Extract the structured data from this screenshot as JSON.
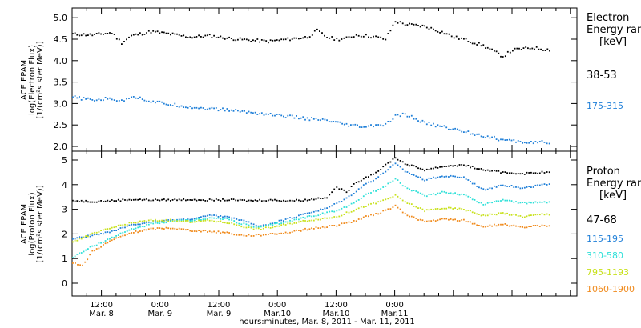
{
  "footer_xlabel": "hours:minutes, Mar.  8, 2011 - Mar. 11, 2011",
  "time_ticks": [
    {
      "top": "12:00",
      "bottom": "Mar. 8"
    },
    {
      "top": "0:00",
      "bottom": "Mar. 9"
    },
    {
      "top": "12:00",
      "bottom": "Mar. 9"
    },
    {
      "top": "0:00",
      "bottom": "Mar.10"
    },
    {
      "top": "12:00",
      "bottom": "Mar.10"
    },
    {
      "top": "0:00",
      "bottom": "Mar.11"
    }
  ],
  "chart_data": [
    {
      "type": "scatter",
      "ylabel_lines": [
        "ACE EPAM",
        "log(Electron Flux)",
        "[1/(cm²s ster MeV)]"
      ],
      "legend_title": [
        "Electron",
        "Energy ranges",
        "[keV]"
      ],
      "x_hours_range": [
        0,
        102
      ],
      "ylim": [
        1.85,
        5.2
      ],
      "yticks": [
        "2.0",
        "2.5",
        "3.0",
        "3.5",
        "4.0",
        "4.5",
        "5.0"
      ],
      "series": [
        {
          "name": "38-53",
          "color": "#000000",
          "x": [
            0,
            4,
            8,
            10,
            12,
            16,
            20,
            24,
            28,
            32,
            36,
            40,
            44,
            48,
            50,
            52,
            54,
            56,
            58,
            60,
            62,
            64,
            66,
            68,
            72,
            76,
            78,
            80,
            84,
            88,
            90,
            94,
            98
          ],
          "y": [
            4.62,
            4.6,
            4.65,
            4.42,
            4.58,
            4.68,
            4.62,
            4.55,
            4.58,
            4.52,
            4.48,
            4.45,
            4.5,
            4.55,
            4.7,
            4.55,
            4.5,
            4.52,
            4.6,
            4.58,
            4.55,
            4.5,
            4.92,
            4.85,
            4.8,
            4.65,
            4.55,
            4.5,
            4.35,
            4.1,
            4.25,
            4.3,
            4.25
          ]
        },
        {
          "name": "175-315",
          "color": "#1f7fd8",
          "x": [
            0,
            4,
            8,
            10,
            12,
            16,
            20,
            24,
            28,
            32,
            36,
            40,
            44,
            48,
            52,
            56,
            60,
            62,
            64,
            66,
            68,
            72,
            76,
            80,
            84,
            88,
            92,
            96,
            98
          ],
          "y": [
            3.15,
            3.08,
            3.12,
            3.05,
            3.18,
            3.05,
            2.98,
            2.92,
            2.88,
            2.85,
            2.8,
            2.75,
            2.7,
            2.65,
            2.6,
            2.5,
            2.45,
            2.5,
            2.5,
            2.7,
            2.75,
            2.55,
            2.45,
            2.35,
            2.25,
            2.15,
            2.1,
            2.1,
            2.05
          ]
        }
      ]
    },
    {
      "type": "scatter",
      "ylabel_lines": [
        "ACE EPAM",
        "log(Proton Flux)",
        "[1/(cm²s ster MeV)]"
      ],
      "legend_title": [
        "Proton",
        "Energy ranges",
        "[keV]"
      ],
      "x_hours_range": [
        0,
        102
      ],
      "ylim": [
        -0.7,
        5.4
      ],
      "yticks": [
        "0",
        "1",
        "2",
        "3",
        "4",
        "5"
      ],
      "series": [
        {
          "name": "47-68",
          "color": "#000000",
          "x": [
            0,
            4,
            8,
            12,
            16,
            20,
            24,
            28,
            32,
            36,
            40,
            44,
            48,
            52,
            54,
            56,
            58,
            60,
            62,
            64,
            66,
            68,
            72,
            76,
            80,
            84,
            88,
            92,
            96,
            98
          ],
          "y": [
            3.35,
            3.32,
            3.35,
            3.4,
            3.38,
            3.38,
            3.4,
            3.38,
            3.38,
            3.35,
            3.38,
            3.35,
            3.38,
            3.5,
            3.9,
            3.7,
            4.1,
            4.3,
            4.5,
            4.8,
            5.1,
            4.85,
            4.6,
            4.75,
            4.8,
            4.6,
            4.5,
            4.45,
            4.5,
            4.5
          ]
        },
        {
          "name": "115-195",
          "color": "#1f7fd8",
          "x": [
            0,
            4,
            8,
            12,
            16,
            20,
            24,
            28,
            32,
            34,
            36,
            38,
            40,
            44,
            48,
            52,
            54,
            56,
            58,
            60,
            62,
            64,
            66,
            68,
            72,
            76,
            80,
            84,
            88,
            92,
            96,
            98
          ],
          "y": [
            1.8,
            1.95,
            2.1,
            2.35,
            2.5,
            2.55,
            2.6,
            2.75,
            2.7,
            2.55,
            2.5,
            2.3,
            2.4,
            2.6,
            2.85,
            3.05,
            3.25,
            3.45,
            3.75,
            4.05,
            4.25,
            4.55,
            4.85,
            4.55,
            4.2,
            4.35,
            4.3,
            3.8,
            4.0,
            3.85,
            4.0,
            4.0
          ]
        },
        {
          "name": "310-580",
          "color": "#2de0d8",
          "x": [
            0,
            4,
            8,
            12,
            16,
            20,
            24,
            28,
            32,
            34,
            36,
            38,
            40,
            44,
            48,
            52,
            54,
            56,
            58,
            60,
            62,
            64,
            66,
            68,
            72,
            76,
            80,
            84,
            88,
            92,
            96,
            98
          ],
          "y": [
            1.05,
            1.5,
            1.85,
            2.2,
            2.4,
            2.5,
            2.55,
            2.65,
            2.6,
            2.45,
            2.35,
            2.25,
            2.35,
            2.5,
            2.7,
            2.85,
            2.95,
            3.1,
            3.35,
            3.6,
            3.75,
            3.95,
            4.25,
            3.9,
            3.55,
            3.7,
            3.6,
            3.2,
            3.4,
            3.25,
            3.3,
            3.3
          ]
        },
        {
          "name": "795-1193",
          "color": "#c8e11c",
          "x": [
            0,
            4,
            8,
            12,
            16,
            20,
            24,
            28,
            32,
            34,
            36,
            38,
            40,
            44,
            48,
            52,
            54,
            56,
            58,
            60,
            62,
            64,
            66,
            68,
            72,
            76,
            80,
            84,
            88,
            92,
            96,
            98
          ],
          "y": [
            1.7,
            2.0,
            2.25,
            2.45,
            2.55,
            2.55,
            2.5,
            2.55,
            2.45,
            2.35,
            2.25,
            2.2,
            2.25,
            2.4,
            2.55,
            2.65,
            2.7,
            2.85,
            3.0,
            3.15,
            3.25,
            3.4,
            3.55,
            3.3,
            2.95,
            3.05,
            3.0,
            2.75,
            2.85,
            2.7,
            2.8,
            2.8
          ]
        },
        {
          "name": "1060-1900",
          "color": "#f08a1c",
          "x": [
            0,
            2,
            4,
            8,
            12,
            16,
            20,
            24,
            28,
            32,
            34,
            36,
            38,
            40,
            44,
            48,
            52,
            54,
            56,
            58,
            60,
            62,
            64,
            66,
            68,
            72,
            76,
            80,
            84,
            88,
            92,
            96,
            98
          ],
          "y": [
            0.85,
            0.7,
            1.3,
            1.75,
            2.05,
            2.2,
            2.25,
            2.15,
            2.1,
            2.05,
            1.95,
            1.95,
            1.95,
            2.0,
            2.05,
            2.2,
            2.3,
            2.35,
            2.45,
            2.55,
            2.7,
            2.8,
            2.95,
            3.15,
            2.8,
            2.5,
            2.6,
            2.55,
            2.3,
            2.4,
            2.25,
            2.35,
            2.35
          ]
        }
      ]
    }
  ]
}
